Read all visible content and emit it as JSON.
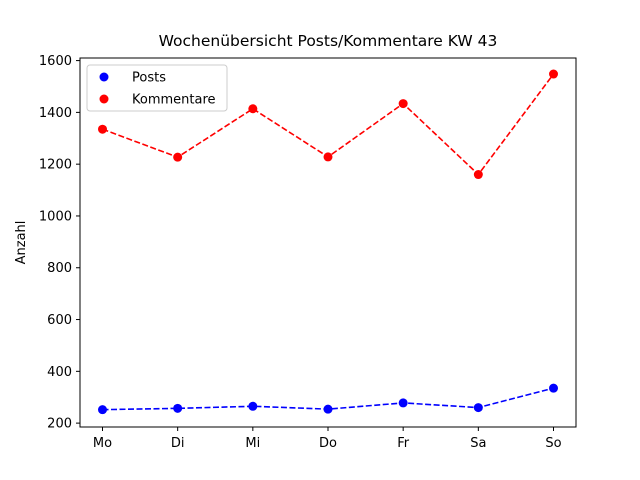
{
  "chart_data": {
    "type": "line",
    "title": "Wochenübersicht Posts/Kommentare KW 43",
    "xlabel": "",
    "ylabel": "Anzahl",
    "categories": [
      "Mo",
      "Di",
      "Mi",
      "Do",
      "Fr",
      "Sa",
      "So"
    ],
    "ylim": [
      185,
      1610
    ],
    "yticks": [
      200,
      400,
      600,
      800,
      1000,
      1200,
      1400,
      1600
    ],
    "grid": false,
    "legend_position": "top-left",
    "series": [
      {
        "name": "Posts",
        "color": "#0000ff",
        "linestyle": "dashed",
        "marker": "circle",
        "values": [
          252,
          257,
          265,
          254,
          278,
          260,
          335
        ]
      },
      {
        "name": "Kommentare",
        "color": "#ff0000",
        "linestyle": "dashed",
        "marker": "circle",
        "values": [
          1335,
          1227,
          1414,
          1228,
          1434,
          1160,
          1548
        ]
      }
    ]
  }
}
